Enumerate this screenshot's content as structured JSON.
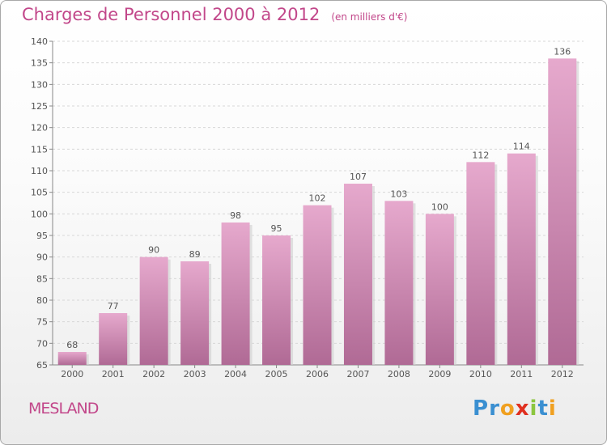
{
  "title": "Charges de Personnel 2000 à 2012",
  "subtitle": "(en milliers d'€)",
  "commune": "MESLAND",
  "brand": {
    "text": "Proxiti",
    "letter_colors": [
      "#3a8fd1",
      "#3a8fd1",
      "#f0a020",
      "#e03020",
      "#8cc63f",
      "#3a8fd1",
      "#f0a020"
    ]
  },
  "colors": {
    "title": "#c2478a",
    "bar_top": "#e6a9cd",
    "bar_bottom": "#b06a95",
    "grid": "#d8d8d8"
  },
  "chart_data": {
    "type": "bar",
    "categories": [
      "2000",
      "2001",
      "2002",
      "2003",
      "2004",
      "2005",
      "2006",
      "2007",
      "2008",
      "2009",
      "2010",
      "2011",
      "2012"
    ],
    "values": [
      68,
      77,
      90,
      89,
      98,
      95,
      102,
      107,
      103,
      100,
      112,
      114,
      136
    ],
    "ylim": [
      65,
      140
    ],
    "yticks": [
      65,
      70,
      75,
      80,
      85,
      90,
      95,
      100,
      105,
      110,
      115,
      120,
      125,
      130,
      135,
      140
    ],
    "grid": true,
    "data_labels": true
  }
}
